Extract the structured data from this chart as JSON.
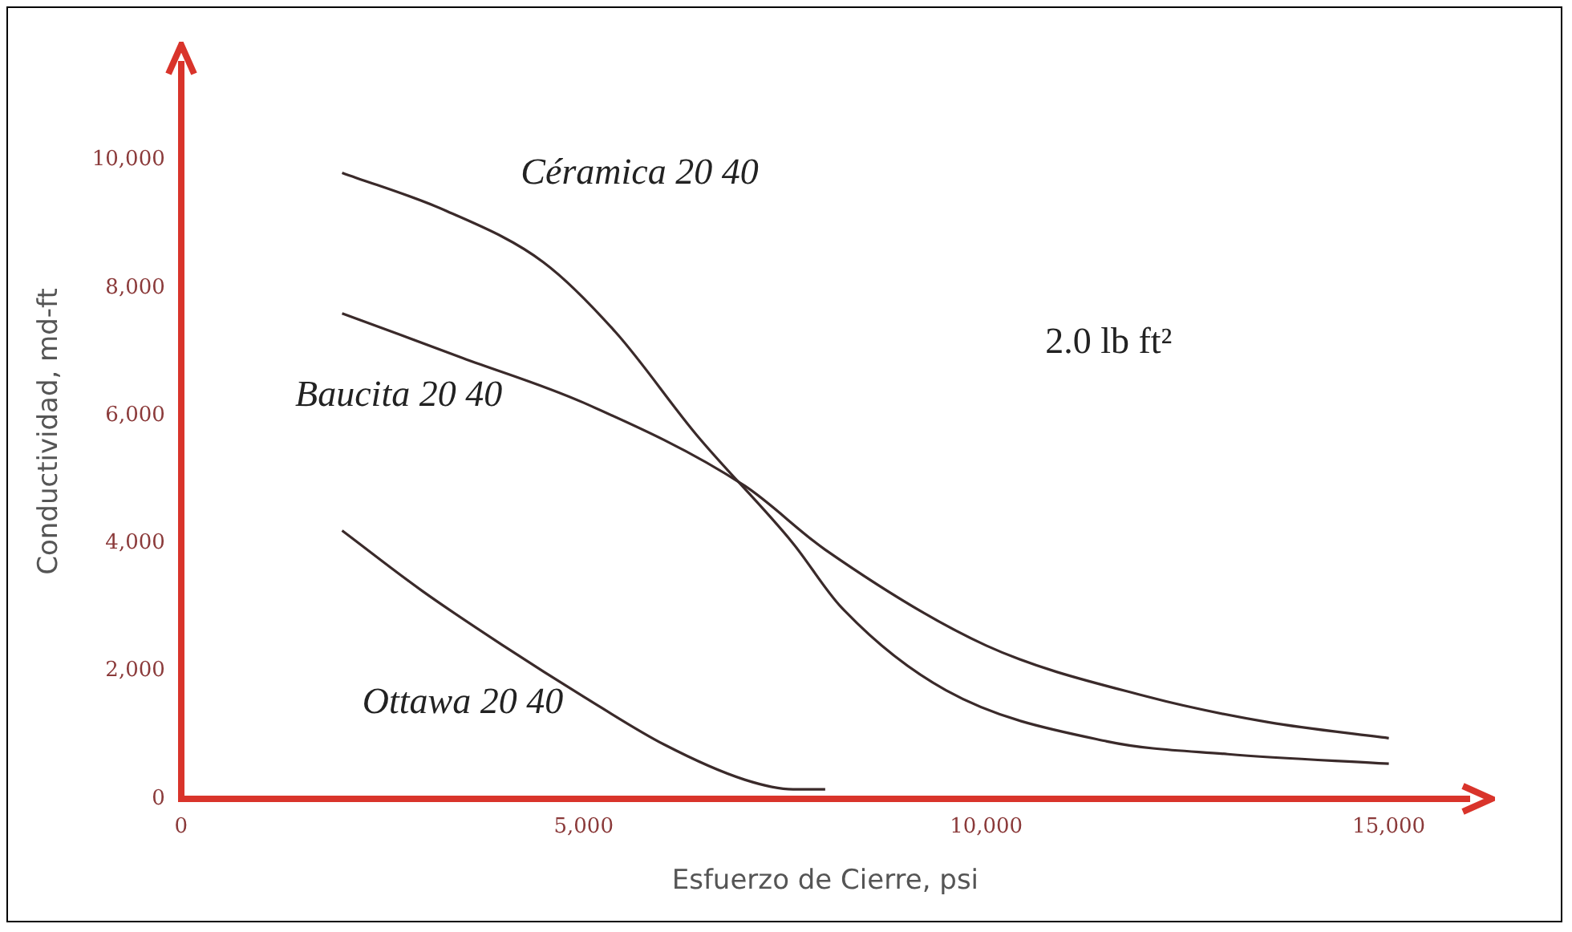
{
  "chart_data": {
    "type": "line",
    "xlabel": "Esfuerzo de Cierre, psi",
    "ylabel": "Conductividad, md-ft",
    "xlim": [
      0,
      16000
    ],
    "ylim": [
      0,
      11500
    ],
    "xticks": [
      {
        "value": 0,
        "label": "0"
      },
      {
        "value": 5000,
        "label": "5,000"
      },
      {
        "value": 10000,
        "label": "10,000"
      },
      {
        "value": 15000,
        "label": "15,000"
      }
    ],
    "yticks": [
      {
        "value": 0,
        "label": "0"
      },
      {
        "value": 2000,
        "label": "2,000"
      },
      {
        "value": 4000,
        "label": "4,000"
      },
      {
        "value": 6000,
        "label": "6,000"
      },
      {
        "value": 8000,
        "label": "8,000"
      },
      {
        "value": 10000,
        "label": "10,000"
      }
    ],
    "grid": false,
    "legend": false,
    "marker": "none",
    "line_style": "solid",
    "annotations": [
      "2.0 lb ft²"
    ],
    "series": [
      {
        "name": "Céramica 20 40",
        "color": "#3a2a2a",
        "x": [
          2000,
          3300,
          4500,
          5400,
          6400,
          7600,
          8200,
          9500,
          11500,
          13000,
          15000
        ],
        "values": [
          9800,
          9200,
          8400,
          7300,
          5700,
          4000,
          3000,
          1700,
          900,
          700,
          550
        ]
      },
      {
        "name": "Baucita 20 40",
        "color": "#3a2a2a",
        "x": [
          2000,
          3500,
          5000,
          7000,
          8000,
          10000,
          12000,
          13500,
          15000
        ],
        "values": [
          7600,
          6900,
          6200,
          4900,
          3900,
          2400,
          1600,
          1200,
          950
        ]
      },
      {
        "name": "Ottawa 20 40",
        "color": "#3a2a2a",
        "x": [
          2000,
          3000,
          4000,
          5000,
          6000,
          7000,
          7600,
          8000
        ],
        "values": [
          4200,
          3250,
          2400,
          1600,
          850,
          300,
          150,
          150
        ]
      }
    ]
  }
}
